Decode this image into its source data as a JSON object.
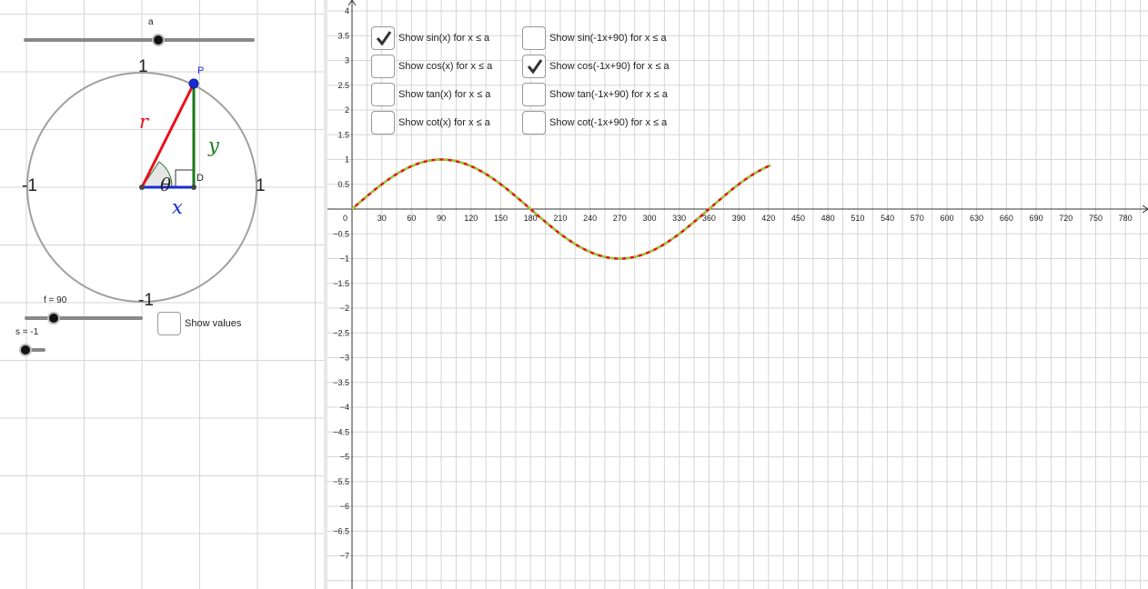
{
  "left": {
    "slider_a": {
      "label": "a",
      "value_fraction": 0.59
    },
    "slider_f": {
      "label": "f = 90",
      "value_fraction": 0.25
    },
    "slider_s": {
      "label": "s = -1",
      "value_fraction": 0.0
    },
    "circle": {
      "label_top": "1",
      "label_bottom": "-1",
      "label_left": "-1",
      "label_right": "1",
      "point_label": "P",
      "foot_label": "D",
      "r_label": "r",
      "x_label": "x",
      "y_label": "y",
      "theta_label": "θ",
      "colors": {
        "r": "#e8101b",
        "x": "#1a2bd6",
        "y": "#1a7a1a",
        "point": "#1a2bd6",
        "circle": "#a0a0a0"
      }
    },
    "show_values": {
      "label": "Show values",
      "checked": false
    }
  },
  "graph": {
    "x_ticks": [
      "0",
      "30",
      "60",
      "90",
      "120",
      "150",
      "180",
      "210",
      "240",
      "270",
      "300",
      "330",
      "360",
      "390",
      "420",
      "450",
      "480",
      "510",
      "540",
      "570",
      "600",
      "630",
      "660",
      "690",
      "720",
      "750",
      "780"
    ],
    "y_ticks_pos": [
      "0.5",
      "1",
      "1.5",
      "2",
      "2.5",
      "3",
      "3.5",
      "4"
    ],
    "y_ticks_neg": [
      "−0.5",
      "−1",
      "−1.5",
      "−2",
      "−2.5",
      "−3",
      "−3.5",
      "−4",
      "−4.5",
      "−5",
      "−5.5",
      "−6",
      "−6.5",
      "−7"
    ],
    "curve_colors": {
      "sin": "#e8101b",
      "cos_shift": "#9acd32"
    },
    "checkboxes": [
      {
        "label": "Show sin(x) for x ≤ a",
        "checked": true
      },
      {
        "label": "Show cos(x) for x ≤ a",
        "checked": false
      },
      {
        "label": "Show tan(x) for x ≤ a",
        "checked": false
      },
      {
        "label": "Show cot(x) for x ≤ a",
        "checked": false
      },
      {
        "label": "Show sin(-1x+90) for x ≤ a",
        "checked": false
      },
      {
        "label": "Show cos(-1x+90) for x ≤ a",
        "checked": true
      },
      {
        "label": "Show tan(-1x+90) for x ≤ a",
        "checked": false
      },
      {
        "label": "Show cot(-1x+90) for x ≤ a",
        "checked": false
      }
    ]
  }
}
